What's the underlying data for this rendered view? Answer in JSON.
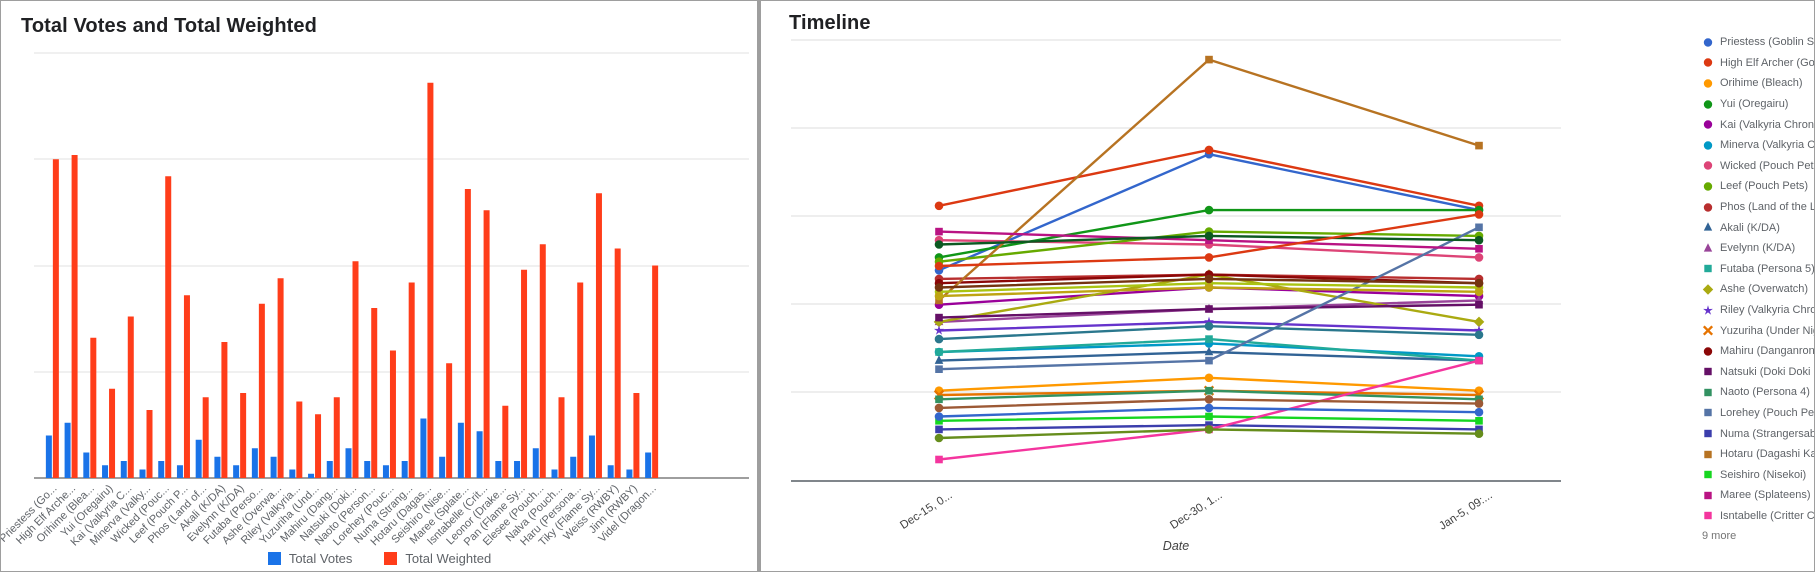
{
  "bar_chart": {
    "title": "Total Votes and Total Weighted",
    "legend": [
      {
        "label": "Total Votes",
        "color": "#1a73e8"
      },
      {
        "label": "Total Weighted",
        "color": "#ff3d1a"
      }
    ]
  },
  "timeline_chart": {
    "title": "Timeline",
    "x_axis_title": "Date",
    "x_ticks": [
      "Dec-15, 0...",
      "Dec-30, 1...",
      "Jan-5, 09:..."
    ],
    "legend_more_label": "9 more"
  },
  "chart_data": [
    {
      "type": "bar",
      "title": "Total Votes and Total Weighted",
      "categories": [
        "Priestess (Go...",
        "High Elf Arche...",
        "Orihime (Blea...",
        "Yui (Oregairu)",
        "Kai (Valkyria C...",
        "Minerva (Valky...",
        "Wicked (Pouc...",
        "Leef (Pouch P...",
        "Phos (Land of...",
        "Akali (K/DA)",
        "Evelynn (K/DA)",
        "Futaba (Perso...",
        "Ashe (Overwa...",
        "Riley (Valkyria...",
        "Yuzuriha (Und...",
        "Mahiru (Dang...",
        "Natsuki (Doki...",
        "Naoto (Person...",
        "Lorehey (Pouc...",
        "Numa (Strang...",
        "Hotaru (Dagas...",
        "Seishiro (Nise...",
        "Maree (Splate...",
        "Isntabelle (Crit...",
        "Leonor (Drake...",
        "Pan (Flame Sy...",
        "Elesee (Pouch...",
        "Nalva (Pouch...",
        "Haru (Persona...",
        "Tiky (Flame Sy...",
        "Weiss (RWBY)",
        "Jinn (RWBY)",
        "Videl (Dragon..."
      ],
      "series": [
        {
          "name": "Total Votes",
          "color": "#1a73e8",
          "values": [
            10,
            13,
            6,
            3,
            4,
            2,
            4,
            3,
            9,
            5,
            3,
            7,
            5,
            2,
            1,
            4,
            7,
            4,
            3,
            4,
            14,
            5,
            13,
            11,
            4,
            4,
            7,
            2,
            5,
            10,
            3,
            2,
            6
          ]
        },
        {
          "name": "Total Weighted",
          "color": "#ff3d1a",
          "values": [
            75,
            76,
            33,
            21,
            38,
            16,
            71,
            43,
            19,
            32,
            20,
            41,
            47,
            18,
            15,
            19,
            51,
            40,
            30,
            46,
            93,
            27,
            68,
            63,
            17,
            49,
            55,
            19,
            46,
            67,
            54,
            20,
            50
          ]
        }
      ],
      "ylim": [
        0,
        100
      ],
      "legend_position": "bottom"
    },
    {
      "type": "line",
      "title": "Timeline",
      "xlabel": "Date",
      "x": [
        "Dec-15, 0...",
        "Dec-30, 1...",
        "Jan-5, 09:..."
      ],
      "ylim": [
        0,
        100
      ],
      "legend_position": "right",
      "legend_visible_count": 24,
      "legend_more_label": "9 more",
      "series": [
        {
          "name": "Priestess (Goblin Slayer)",
          "color": "#3366CC",
          "shape": "circle",
          "in_legend": true,
          "values": [
            49,
            76,
            63
          ]
        },
        {
          "name": "High Elf Archer (Goblin...",
          "color": "#DC3912",
          "shape": "circle",
          "in_legend": true,
          "values": [
            64,
            77,
            64
          ]
        },
        {
          "name": "Orihime (Bleach)",
          "color": "#FF9900",
          "shape": "circle",
          "in_legend": true,
          "values": [
            21,
            24,
            21
          ]
        },
        {
          "name": "Yui (Oregairu)",
          "color": "#109618",
          "shape": "circle",
          "in_legend": true,
          "values": [
            52,
            63,
            63
          ]
        },
        {
          "name": "Kai (Valkyria Chronicle...",
          "color": "#990099",
          "shape": "circle",
          "in_legend": true,
          "values": [
            41,
            45,
            43
          ]
        },
        {
          "name": "Minerva (Valkyria Chro...",
          "color": "#0099C6",
          "shape": "circle",
          "in_legend": true,
          "values": [
            30,
            32,
            29
          ]
        },
        {
          "name": "Wicked (Pouch Pets)",
          "color": "#DD4477",
          "shape": "circle",
          "in_legend": true,
          "values": [
            56,
            55,
            52
          ]
        },
        {
          "name": "Leef (Pouch Pets)",
          "color": "#66AA00",
          "shape": "circle",
          "in_legend": true,
          "values": [
            51,
            58,
            57
          ]
        },
        {
          "name": "Phos (Land of the Lustr...",
          "color": "#B82E2E",
          "shape": "circle",
          "in_legend": true,
          "values": [
            47,
            48,
            47
          ]
        },
        {
          "name": "Akali (K/DA)",
          "color": "#316395",
          "shape": "triangle",
          "in_legend": true,
          "values": [
            28,
            30,
            28
          ]
        },
        {
          "name": "Evelynn (K/DA)",
          "color": "#994499",
          "shape": "triangle",
          "in_legend": true,
          "values": [
            37,
            40,
            42
          ]
        },
        {
          "name": "Futaba (Persona 5)",
          "color": "#22AA99",
          "shape": "square",
          "in_legend": true,
          "values": [
            30,
            33,
            28
          ]
        },
        {
          "name": "Ashe (Overwatch)",
          "color": "#AAAA11",
          "shape": "diamond",
          "in_legend": true,
          "values": [
            37,
            48,
            37
          ]
        },
        {
          "name": "Riley (Valkyria Chronicl...",
          "color": "#6633CC",
          "shape": "star",
          "in_legend": true,
          "values": [
            35,
            37,
            35
          ]
        },
        {
          "name": "Yuzuriha (Under Night I...",
          "color": "#E67300",
          "shape": "x",
          "in_legend": true,
          "values": [
            20,
            21,
            20
          ]
        },
        {
          "name": "Mahiru (Danganronpa...",
          "color": "#8B0707",
          "shape": "circle",
          "in_legend": true,
          "values": [
            46,
            48,
            46
          ]
        },
        {
          "name": "Natsuki (Doki Doki Liter...",
          "color": "#651067",
          "shape": "square",
          "in_legend": true,
          "values": [
            38,
            40,
            41
          ]
        },
        {
          "name": "Naoto (Persona 4)",
          "color": "#329262",
          "shape": "square",
          "in_legend": true,
          "values": [
            19,
            21,
            19
          ]
        },
        {
          "name": "Lorehey (Pouch Pets)",
          "color": "#5574A6",
          "shape": "square",
          "in_legend": true,
          "values": [
            26,
            28,
            59
          ]
        },
        {
          "name": "Numa (Strangersabre...",
          "color": "#3B3EAC",
          "shape": "square",
          "in_legend": true,
          "values": [
            12,
            13,
            12
          ]
        },
        {
          "name": "Hotaru (Dagashi Kashi)",
          "color": "#B77322",
          "shape": "square",
          "in_legend": true,
          "values": [
            42,
            98,
            78
          ]
        },
        {
          "name": "Seishiro (Nisekoi)",
          "color": "#16D620",
          "shape": "square",
          "in_legend": true,
          "values": [
            14,
            15,
            14
          ]
        },
        {
          "name": "Maree (Splateens)",
          "color": "#B91383",
          "shape": "square",
          "in_legend": true,
          "values": [
            58,
            56,
            54
          ]
        },
        {
          "name": "Isntabelle (Critter Cros...",
          "color": "#F4359E",
          "shape": "square",
          "in_legend": true,
          "values": [
            5,
            12,
            28
          ]
        },
        {
          "name": "Leonor (Drake...",
          "color": "#9C5935",
          "shape": "circle",
          "in_legend": false,
          "values": [
            17,
            19,
            18
          ]
        },
        {
          "name": "Pan (Flame Sy...",
          "color": "#A9C413",
          "shape": "circle",
          "in_legend": false,
          "values": [
            44,
            46,
            45
          ]
        },
        {
          "name": "Elesee (Pouch...",
          "color": "#2A778D",
          "shape": "circle",
          "in_legend": false,
          "values": [
            33,
            36,
            34
          ]
        },
        {
          "name": "Nalva (Pouch...",
          "color": "#668D1C",
          "shape": "circle",
          "in_legend": false,
          "values": [
            10,
            12,
            11
          ]
        },
        {
          "name": "Haru (Persona...",
          "color": "#BEA413",
          "shape": "circle",
          "in_legend": false,
          "values": [
            43,
            45,
            44
          ]
        },
        {
          "name": "Tiky (Flame Sy...",
          "color": "#0C5922",
          "shape": "circle",
          "in_legend": false,
          "values": [
            55,
            57,
            56
          ]
        },
        {
          "name": "Weiss (RWBY)",
          "color": "#743411",
          "shape": "circle",
          "in_legend": false,
          "values": [
            45,
            47,
            46
          ]
        },
        {
          "name": "Jinn (RWBY)",
          "color": "#3366CC",
          "shape": "circle",
          "in_legend": false,
          "values": [
            15,
            17,
            16
          ]
        },
        {
          "name": "Videl (Dragon...",
          "color": "#DC3912",
          "shape": "circle",
          "in_legend": false,
          "values": [
            50,
            52,
            62
          ]
        }
      ]
    }
  ]
}
